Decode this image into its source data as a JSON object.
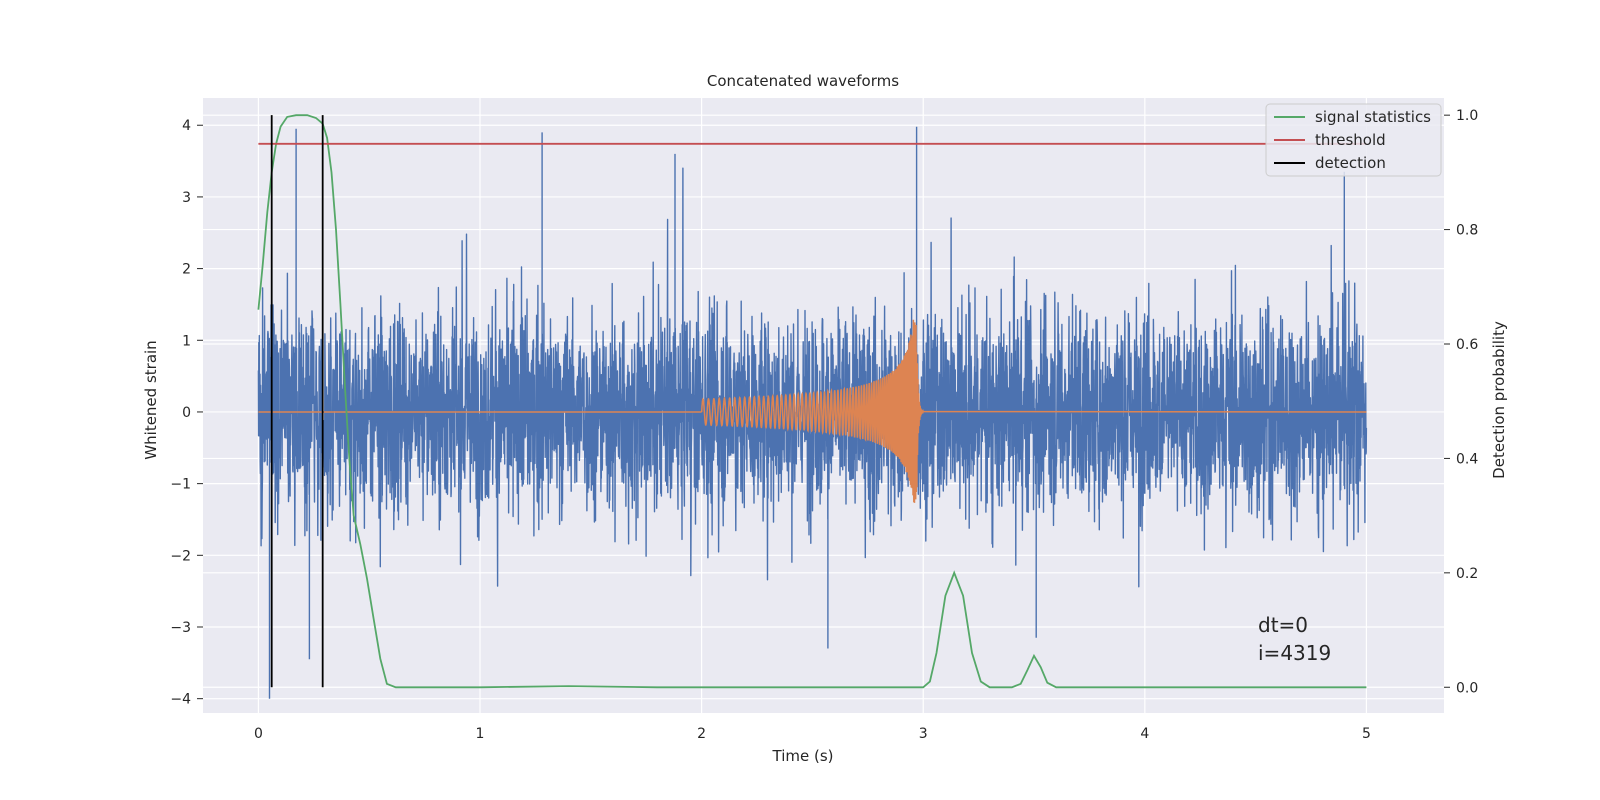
{
  "chart_data": {
    "type": "line",
    "title": "Concatenated waveforms",
    "xlabel": "Time (s)",
    "ylabel": "Whitened strain",
    "ylabel_right": "Detection probability",
    "xlim": [
      -0.25,
      5.35
    ],
    "ylim": [
      -4.2,
      4.38
    ],
    "ylim_right": [
      -0.045,
      1.03
    ],
    "x_ticks": [
      0,
      1,
      2,
      3,
      4,
      5
    ],
    "y_ticks": [
      -4,
      -3,
      -2,
      -1,
      0,
      1,
      2,
      3,
      4
    ],
    "y_ticks_right": [
      0.0,
      0.2,
      0.4,
      0.6,
      0.8,
      1.0
    ],
    "x_tick_labels": [
      "0",
      "1",
      "2",
      "3",
      "4",
      "5"
    ],
    "y_tick_labels": [
      "−4",
      "−3",
      "−2",
      "−1",
      "0",
      "1",
      "2",
      "3",
      "4"
    ],
    "y_tick_labels_right": [
      "0.0",
      "0.2",
      "0.4",
      "0.6",
      "0.8",
      "1.0"
    ],
    "grid": true,
    "legend_position": "top-right",
    "legend": [
      {
        "label": "signal statistics",
        "color": "#55a868"
      },
      {
        "label": "threshold",
        "color": "#c44e52"
      },
      {
        "label": "detection",
        "color": "#000000"
      }
    ],
    "noise": {
      "axis": "left",
      "color": "#4c72b0",
      "x_range": [
        0,
        5
      ],
      "notable_peaks": [
        {
          "x": 0.17,
          "y": 3.95
        },
        {
          "x": 1.28,
          "y": 3.9
        },
        {
          "x": 1.88,
          "y": 3.6
        },
        {
          "x": 2.97,
          "y": 3.98
        },
        {
          "x": 4.9,
          "y": 3.35
        },
        {
          "x": 0.05,
          "y": -4.0
        },
        {
          "x": 0.23,
          "y": -3.45
        },
        {
          "x": 3.51,
          "y": -3.15
        },
        {
          "x": 2.57,
          "y": -3.3
        }
      ]
    },
    "injected_signal": {
      "axis": "left",
      "color": "#dd8452",
      "x_start": 2.0,
      "x_merger": 2.97,
      "x_end": 3.0,
      "start_amplitude": 0.18,
      "peak_amplitude": 1.3
    },
    "series": [
      {
        "name": "signal statistics",
        "axis": "right",
        "color": "#55a868",
        "points": [
          [
            0.0,
            0.66
          ],
          [
            0.02,
            0.74
          ],
          [
            0.04,
            0.83
          ],
          [
            0.06,
            0.9
          ],
          [
            0.08,
            0.95
          ],
          [
            0.1,
            0.98
          ],
          [
            0.13,
            0.997
          ],
          [
            0.17,
            1.0
          ],
          [
            0.22,
            1.0
          ],
          [
            0.26,
            0.995
          ],
          [
            0.29,
            0.985
          ],
          [
            0.31,
            0.96
          ],
          [
            0.33,
            0.9
          ],
          [
            0.35,
            0.8
          ],
          [
            0.37,
            0.67
          ],
          [
            0.39,
            0.53
          ],
          [
            0.41,
            0.4
          ],
          [
            0.43,
            0.3
          ],
          [
            0.46,
            0.25
          ],
          [
            0.49,
            0.19
          ],
          [
            0.52,
            0.12
          ],
          [
            0.55,
            0.05
          ],
          [
            0.58,
            0.006
          ],
          [
            0.62,
            0.0
          ],
          [
            1.0,
            0.0
          ],
          [
            1.4,
            0.002
          ],
          [
            1.8,
            0.0
          ],
          [
            2.5,
            0.0
          ],
          [
            3.0,
            0.0
          ],
          [
            3.03,
            0.01
          ],
          [
            3.06,
            0.06
          ],
          [
            3.1,
            0.16
          ],
          [
            3.14,
            0.2
          ],
          [
            3.18,
            0.16
          ],
          [
            3.22,
            0.06
          ],
          [
            3.26,
            0.01
          ],
          [
            3.3,
            0.0
          ],
          [
            3.4,
            0.0
          ],
          [
            3.44,
            0.006
          ],
          [
            3.47,
            0.03
          ],
          [
            3.5,
            0.055
          ],
          [
            3.53,
            0.035
          ],
          [
            3.56,
            0.008
          ],
          [
            3.6,
            0.0
          ],
          [
            4.0,
            0.0
          ],
          [
            4.5,
            0.0
          ],
          [
            5.0,
            0.0
          ]
        ]
      },
      {
        "name": "threshold",
        "axis": "right",
        "color": "#c44e52",
        "points": [
          [
            0.0,
            0.95
          ],
          [
            5.0,
            0.95
          ]
        ]
      },
      {
        "name": "detection",
        "axis": "right",
        "color": "#000000",
        "x": [
          0.06,
          0.29
        ],
        "y_range": [
          0.0,
          1.0
        ]
      }
    ],
    "annotation": [
      "dt=0",
      "i=4319"
    ]
  }
}
